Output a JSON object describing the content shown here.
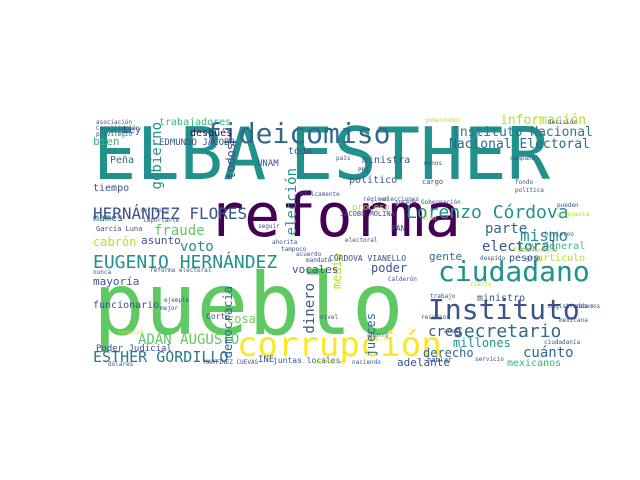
{
  "words": {
    "elba": {
      "text": "ELBA",
      "color": "#21918c"
    },
    "esther": {
      "text": "ESTHER",
      "color": "#21918c"
    },
    "reforma": {
      "text": "reforma",
      "color": "#440154"
    },
    "pueblo": {
      "text": "pueblo",
      "color": "#5ec962"
    },
    "fideicomiso": {
      "text": "fideicomiso",
      "color": "#31688e"
    },
    "corrupcion": {
      "text": "corrupción",
      "color": "#fde725"
    },
    "instituto": {
      "text": "Instituto",
      "color": "#3b528b"
    },
    "ciudadano": {
      "text": "ciudadano",
      "color": "#21918c"
    },
    "eugenio": {
      "text": "EUGENIO HERNÁNDEZ",
      "color": "#21918c"
    },
    "hernandez": {
      "text": "HERNÁNDEZ FLORES",
      "color": "#3b528b"
    },
    "esther_g": {
      "text": "ESTHER GORDILLO",
      "color": "#2a788e"
    },
    "adan": {
      "text": "ADÁN AUGUSTO",
      "color": "#5ec962"
    },
    "lorenzo": {
      "text": "Lorenzo Córdova",
      "color": "#21918c"
    },
    "secretario": {
      "text": "secretario",
      "color": "#31688e"
    },
    "mismo": {
      "text": "mismo",
      "color": "#21918c"
    },
    "electoral": {
      "text": "electoral",
      "color": "#3b528b"
    },
    "instituto_n": {
      "text": "Instituto Nacional",
      "color": "#2a788e"
    },
    "nacional_e": {
      "text": "Nacional Electoral",
      "color": "#31688e"
    },
    "informacion": {
      "text": "información",
      "color": "#b5de2b"
    },
    "fraude": {
      "text": "fraude",
      "color": "#5ec962"
    },
    "voto": {
      "text": "voto",
      "color": "#21918c"
    },
    "parte": {
      "text": "parte",
      "color": "#31688e"
    },
    "cuanto": {
      "text": "cuánto",
      "color": "#31688e"
    },
    "creo": {
      "text": "creo",
      "color": "#3b528b"
    },
    "derecho": {
      "text": "derecho",
      "color": "#31688e"
    },
    "millones": {
      "text": "millones",
      "color": "#21918c"
    },
    "mexicanos": {
      "text": "mexicanos",
      "color": "#35b779"
    },
    "todos": {
      "text": "todos",
      "color": "#3b528b"
    },
    "toda": {
      "text": "toda",
      "color": "#3b528b"
    },
    "cosa": {
      "text": "cosa",
      "color": "#6ece58"
    },
    "democracia": {
      "text": "democracia",
      "color": "#31688e"
    },
    "gobierno": {
      "text": "gobierno",
      "color": "#21918c"
    },
    "eleccion": {
      "text": "elección",
      "color": "#21918c"
    },
    "dinero": {
      "text": "dinero",
      "color": "#3b528b"
    },
    "medio": {
      "text": "medio",
      "color": "#b5de2b"
    },
    "jueces": {
      "text": "jueces",
      "color": "#31688e"
    },
    "poder": {
      "text": "poder",
      "color": "#3b528b"
    },
    "vocales": {
      "text": "vocales",
      "color": "#3b528b"
    },
    "adelante": {
      "text": "adelante",
      "color": "#3b528b"
    },
    "gente": {
      "text": "gente",
      "color": "#31688e"
    },
    "ministro": {
      "text": "ministro",
      "color": "#3b528b"
    },
    "ministra": {
      "text": "ministra",
      "color": "#3b528b"
    },
    "politico": {
      "text": "político",
      "color": "#3b528b"
    },
    "cabron": {
      "text": "cabrón",
      "color": "#b5de2b"
    },
    "mayoria": {
      "text": "mayoría",
      "color": "#3b528b"
    },
    "asunto": {
      "text": "asunto",
      "color": "#3b528b"
    },
    "mames": {
      "text": "mames",
      "color": "#31688e"
    },
    "funcionario": {
      "text": "funcionario",
      "color": "#3b528b"
    },
    "poder_j": {
      "text": "Poder Judicial",
      "color": "#3b528b"
    },
    "ley": {
      "text": "Ley",
      "color": "#3b528b"
    },
    "bien": {
      "text": "bien",
      "color": "#35b779"
    },
    "pena": {
      "text": "Peña",
      "color": "#31688e"
    },
    "tiempo": {
      "text": "tiempo",
      "color": "#3b528b"
    },
    "trabajadores": {
      "text": "trabajadores",
      "color": "#35b779"
    },
    "despues": {
      "text": "después",
      "color": "#440154"
    },
    "edmundo": {
      "text": "EDMUNDO JACOBO",
      "color": "#3b528b"
    },
    "unam": {
      "text": "UNAM",
      "color": "#3b528b"
    },
    "jacobo_m": {
      "text": "JACOBO MOLINA",
      "color": "#3b528b"
    },
    "cordova_v": {
      "text": "CÓRDOVA VIANELLO",
      "color": "#3b528b"
    },
    "ley_g": {
      "text": "Ley General",
      "color": "#35b779"
    },
    "pesos": {
      "text": "pesos",
      "color": "#3b528b"
    },
    "articulo": {
      "text": "artículo",
      "color": "#b5de2b"
    },
    "pan": {
      "text": "PAN",
      "color": "#3b528b"
    },
    "proceso": {
      "text": "proceso",
      "color": "#b5de2b"
    },
    "juntas": {
      "text": "juntas locales",
      "color": "#3b528b"
    },
    "corte": {
      "text": "Corte",
      "color": "#3b528b"
    },
    "garcia": {
      "text": "García Luna",
      "color": "#3b528b"
    },
    "hablar": {
      "text": "hablar",
      "color": "#3b528b"
    },
    "ahorro": {
      "text": "ahorro",
      "color": "#3b528b"
    },
    "cargo": {
      "text": "cargo",
      "color": "#3b528b"
    },
    "calderon": {
      "text": "Calderón",
      "color": "#3b528b"
    },
    "ine": {
      "text": "INE",
      "color": "#3b528b"
    }
  },
  "small_words": [
    {
      "text": "asociación",
      "color": "#3b528b"
    },
    {
      "text": "Constitución",
      "color": "#3b528b"
    },
    {
      "text": "privilegio",
      "color": "#3b528b"
    },
    {
      "text": "gobernador",
      "color": "#b5de2b"
    },
    {
      "text": "decisión",
      "color": "#3b528b"
    },
    {
      "text": "país",
      "color": "#3b528b"
    },
    {
      "text": "elecciones",
      "color": "#3b528b"
    },
    {
      "text": "régimen",
      "color": "#3b528b"
    },
    {
      "text": "Gobernación",
      "color": "#3b528b"
    },
    {
      "text": "campaña",
      "color": "#3b528b"
    },
    {
      "text": "fondo",
      "color": "#3b528b"
    },
    {
      "text": "política",
      "color": "#3b528b"
    },
    {
      "text": "pueden",
      "color": "#3b528b"
    },
    {
      "text": "propuesta",
      "color": "#b5de2b"
    },
    {
      "text": "importante",
      "color": "#3b528b"
    },
    {
      "text": "seguir",
      "color": "#3b528b"
    },
    {
      "text": "ahorita",
      "color": "#3b528b"
    },
    {
      "text": "tampoco",
      "color": "#3b528b"
    },
    {
      "text": "acuerdo",
      "color": "#3b528b"
    },
    {
      "text": "Básicamente",
      "color": "#3b528b"
    },
    {
      "text": "mejor",
      "color": "#3b528b"
    },
    {
      "text": "ejemplo",
      "color": "#3b528b"
    },
    {
      "text": "negocio",
      "color": "#b5de2b"
    },
    {
      "text": "dólares",
      "color": "#3b528b"
    },
    {
      "text": "corrupto",
      "color": "#3b528b"
    },
    {
      "text": "nunca",
      "color": "#3b528b"
    },
    {
      "text": "reforma electoral",
      "color": "#3b528b"
    },
    {
      "text": "MARTÍNEZ CUEVAS",
      "color": "#3b528b"
    },
    {
      "text": "hicieron",
      "color": "#3b528b"
    },
    {
      "text": "mandato",
      "color": "#3b528b"
    },
    {
      "text": "naciendo",
      "color": "#3b528b"
    },
    {
      "text": "recursos",
      "color": "#3b528b"
    },
    {
      "text": "magistrados",
      "color": "#3b528b"
    },
    {
      "text": "sabemos",
      "color": "#3b528b"
    },
    {
      "text": "cierto",
      "color": "#b5de2b"
    },
    {
      "text": "despido",
      "color": "#3b528b"
    },
    {
      "text": "ciudadanía",
      "color": "#3b528b"
    },
    {
      "text": "servicio",
      "color": "#3b528b"
    },
    {
      "text": "trabajo",
      "color": "#3b528b"
    },
    {
      "text": "años",
      "color": "#3b528b"
    },
    {
      "text": "sido",
      "color": "#b5de2b"
    },
    {
      "text": "menos",
      "color": "#3b528b"
    },
    {
      "text": "gran",
      "color": "#3b528b"
    },
    {
      "text": "fideicomisos",
      "color": "#b5de2b"
    },
    {
      "text": "nivel",
      "color": "#3b528b"
    },
    {
      "text": "electoral",
      "color": "#3b528b"
    },
    {
      "text": "PRI",
      "color": "#3b528b"
    },
    {
      "text": "entrante",
      "color": "#b5de2b"
    },
    {
      "text": "mexicana",
      "color": "#3b528b"
    },
    {
      "text": "sucede",
      "color": "#3b528b"
    }
  ]
}
